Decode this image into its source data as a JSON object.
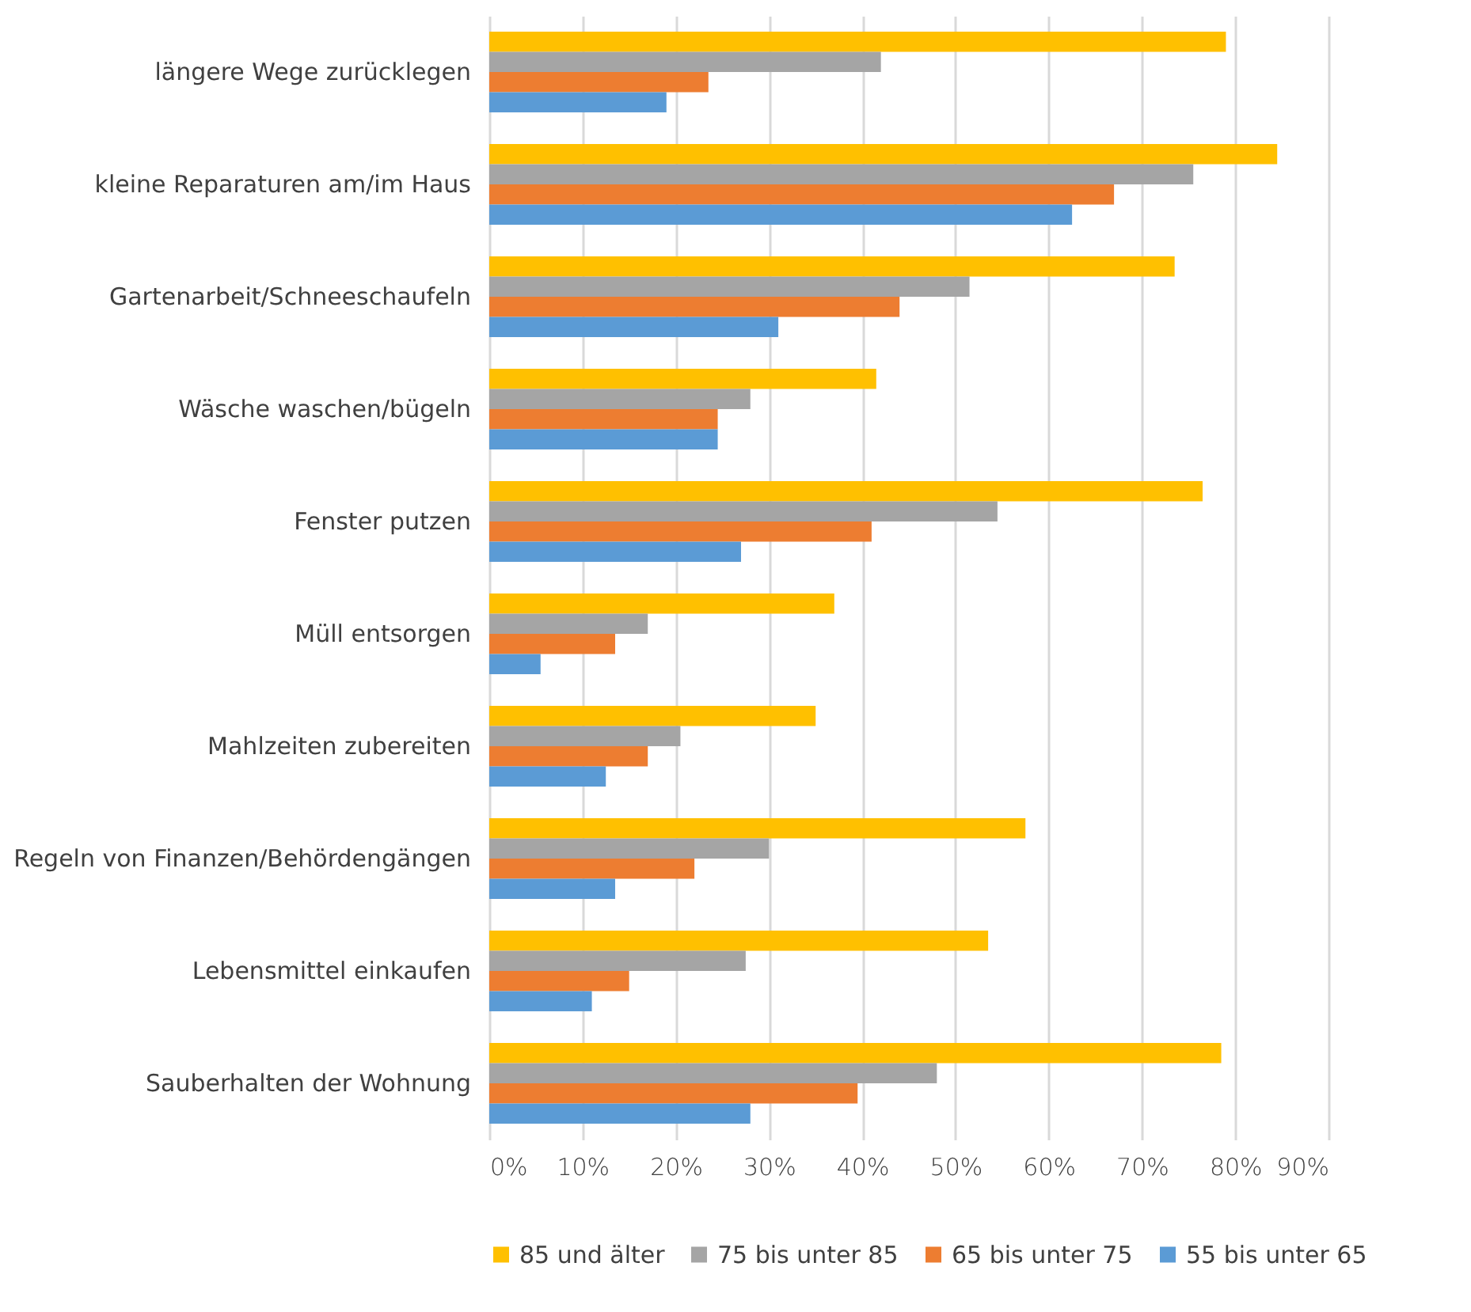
{
  "chart_data": {
    "type": "bar",
    "orientation": "horizontal",
    "categories": [
      "längere Wege zurücklegen",
      "kleine Reparaturen am/im Haus",
      "Gartenarbeit/Schneeschaufeln",
      "Wäsche waschen/bügeln",
      "Fenster putzen",
      "Müll entsorgen",
      "Mahlzeiten zubereiten",
      "Regeln von Finanzen/Behördengängen",
      "Lebensmittel einkaufen",
      "Sauberhalten der Wohnung"
    ],
    "series": [
      {
        "name": "85 und älter",
        "color": "#ffc000",
        "values": [
          79,
          84.5,
          73.5,
          41.5,
          76.5,
          37,
          35,
          57.5,
          53.5,
          78.5
        ]
      },
      {
        "name": "75 bis unter 85",
        "color": "#a5a5a5",
        "values": [
          42,
          75.5,
          51.5,
          28,
          54.5,
          17,
          20.5,
          30,
          27.5,
          48
        ]
      },
      {
        "name": "65 bis unter 75",
        "color": "#ed7d31",
        "values": [
          23.5,
          67,
          44,
          24.5,
          41,
          13.5,
          17,
          22,
          15,
          39.5
        ]
      },
      {
        "name": "55 bis unter 65",
        "color": "#5b9bd5",
        "values": [
          19,
          62.5,
          31,
          24.5,
          27,
          5.5,
          12.5,
          13.5,
          11,
          28
        ]
      }
    ],
    "xlim": [
      0,
      90
    ],
    "xticks": [
      {
        "value": 0,
        "label": "0%"
      },
      {
        "value": 10,
        "label": "10%"
      },
      {
        "value": 20,
        "label": "20%"
      },
      {
        "value": 30,
        "label": "30%"
      },
      {
        "value": 40,
        "label": "40%"
      },
      {
        "value": 50,
        "label": "50%"
      },
      {
        "value": 60,
        "label": "60%"
      },
      {
        "value": 70,
        "label": "70%"
      },
      {
        "value": 80,
        "label": "80%"
      },
      {
        "value": 90,
        "label": "90%"
      }
    ],
    "grid": "x",
    "legend": "bottom"
  }
}
